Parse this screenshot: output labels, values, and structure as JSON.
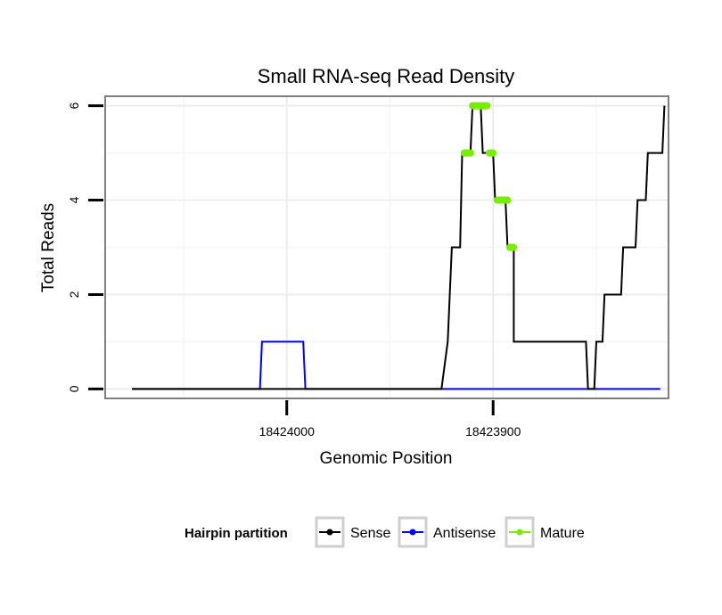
{
  "chart_data": {
    "type": "line",
    "title": "Small RNA-seq Read Density",
    "xlabel": "Genomic Position",
    "ylabel": "Total Reads",
    "xlim": [
      18424088,
      18423815
    ],
    "x_reversed": true,
    "ylim": [
      -0.2,
      6.2
    ],
    "x_ticks": [
      18424000,
      18423900
    ],
    "x_tick_labels": [
      "18424000",
      "18423900"
    ],
    "y_ticks": [
      0,
      2,
      4,
      6
    ],
    "y_tick_labels": [
      "0",
      "2",
      "4",
      "6"
    ],
    "minor_x_ticks": [
      18424050,
      18423950,
      18423850
    ],
    "minor_y_ticks": [
      1,
      3,
      5
    ],
    "grid": true,
    "legend": {
      "title": "Hairpin partition",
      "position": "bottom",
      "entries": [
        "Sense",
        "Antisense",
        "Mature"
      ]
    },
    "series": [
      {
        "name": "Sense",
        "color": "#000000",
        "x": [
          18424075,
          18423925,
          18423922,
          18423920,
          18423916,
          18423915,
          18423911,
          18423910,
          18423906,
          18423905,
          18423900,
          18423899,
          18423894,
          18423893,
          18423890,
          18423890,
          18423855,
          18423854,
          18423851,
          18423850,
          18423847,
          18423846,
          18423838,
          18423837,
          18423831,
          18423830,
          18423826,
          18423825,
          18423818,
          18423817
        ],
        "y": [
          0,
          0,
          1,
          3,
          3,
          5,
          5,
          6,
          6,
          5,
          5,
          4,
          4,
          3,
          3,
          1,
          1,
          0,
          0,
          1,
          1,
          2,
          2,
          3,
          3,
          4,
          4,
          5,
          5,
          6
        ]
      },
      {
        "name": "Antisense",
        "color": "#0000ff",
        "x": [
          18424075,
          18424013,
          18424012,
          18423992,
          18423991,
          18423819
        ],
        "y": [
          0,
          0,
          1,
          1,
          0,
          0
        ]
      },
      {
        "name": "Mature",
        "color": "#76ee00",
        "x": [
          18423914,
          18423911,
          18423910,
          18423903,
          18423903,
          18423901,
          18423898,
          18423893,
          18423891
        ],
        "y": [
          5,
          5,
          6,
          6,
          6,
          5,
          4,
          4,
          3
        ]
      }
    ]
  }
}
